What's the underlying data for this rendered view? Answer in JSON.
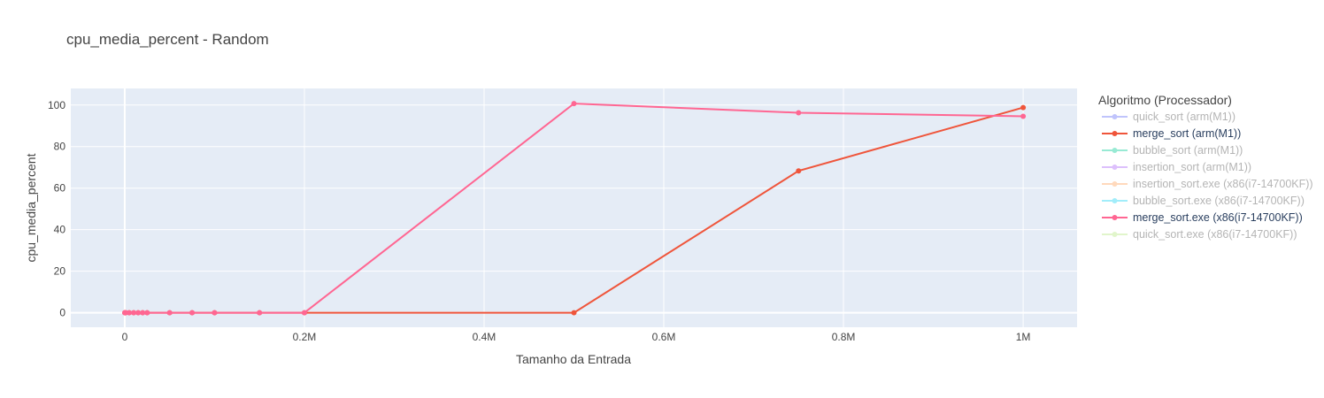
{
  "chart_data": {
    "type": "line",
    "title": "cpu_media_percent - Random",
    "xlabel": "Tamanho da Entrada",
    "ylabel": "cpu_media_percent",
    "xlim": [
      -60000,
      1060000
    ],
    "ylim": [
      -7,
      108
    ],
    "x_ticks": [
      0,
      200000,
      400000,
      600000,
      800000,
      1000000
    ],
    "x_tick_labels": [
      "0",
      "0.2M",
      "0.4M",
      "0.6M",
      "0.8M",
      "1M"
    ],
    "y_ticks": [
      0,
      20,
      40,
      60,
      80,
      100
    ],
    "y_tick_labels": [
      "0",
      "20",
      "40",
      "60",
      "80",
      "100"
    ],
    "grid": true,
    "legend": {
      "title": "Algoritmo (Processador)",
      "placement": "right",
      "entries": [
        {
          "label": "quick_sort (arm(M1))",
          "color": "#636efa",
          "dimmed": true
        },
        {
          "label": "merge_sort (arm(M1))",
          "color": "#ef553b",
          "dimmed": false
        },
        {
          "label": "bubble_sort (arm(M1))",
          "color": "#00cc96",
          "dimmed": true
        },
        {
          "label": "insertion_sort (arm(M1))",
          "color": "#ab63fa",
          "dimmed": true
        },
        {
          "label": "insertion_sort.exe (x86(i7-14700KF))",
          "color": "#ffa15a",
          "dimmed": true
        },
        {
          "label": "bubble_sort.exe (x86(i7-14700KF))",
          "color": "#19d3f3",
          "dimmed": true
        },
        {
          "label": "merge_sort.exe (x86(i7-14700KF))",
          "color": "#ff6692",
          "dimmed": false
        },
        {
          "label": "quick_sort.exe (x86(i7-14700KF))",
          "color": "#b6e880",
          "dimmed": true
        }
      ]
    },
    "series": [
      {
        "name": "merge_sort (arm(M1))",
        "color": "#ef553b",
        "x": [
          100,
          500,
          1000,
          5000,
          10000,
          15000,
          20000,
          25000,
          50000,
          75000,
          100000,
          150000,
          200000,
          500000,
          750000,
          1000000
        ],
        "y": [
          0,
          0,
          0,
          0,
          0,
          0,
          0,
          0,
          0,
          0,
          0,
          0,
          0,
          0,
          68.3,
          98.8
        ]
      },
      {
        "name": "merge_sort.exe (x86(i7-14700KF))",
        "color": "#ff6692",
        "x": [
          100,
          500,
          1000,
          5000,
          10000,
          15000,
          20000,
          25000,
          50000,
          75000,
          100000,
          150000,
          200000,
          500000,
          750000,
          1000000
        ],
        "y": [
          0,
          0,
          0,
          0,
          0,
          0,
          0,
          0,
          0,
          0,
          0,
          0,
          0,
          100.7,
          96.3,
          94.6
        ]
      }
    ]
  }
}
